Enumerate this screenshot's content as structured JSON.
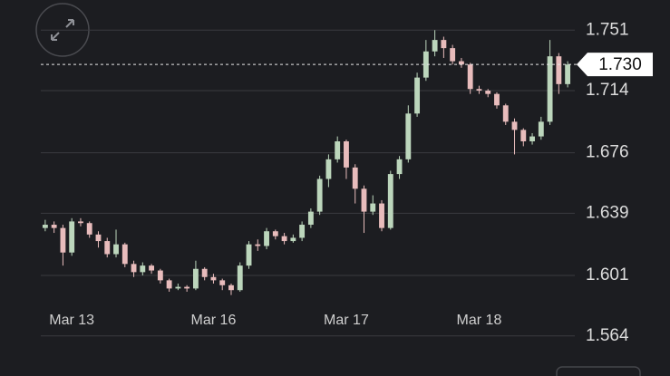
{
  "chart_data": {
    "type": "candlestick",
    "categories": [
      null,
      null,
      null,
      "Mar 13",
      null,
      null,
      null,
      null,
      null,
      null,
      null,
      null,
      null,
      null,
      null,
      null,
      null,
      null,
      null,
      "Mar 16",
      null,
      null,
      null,
      null,
      null,
      null,
      null,
      null,
      null,
      null,
      null,
      null,
      null,
      null,
      "Mar 17",
      null,
      null,
      null,
      null,
      null,
      null,
      null,
      null,
      null,
      null,
      null,
      null,
      null,
      null,
      "Mar 18",
      null,
      null,
      null,
      null,
      null,
      null,
      null,
      null,
      null,
      null
    ],
    "open": [
      1.63,
      1.632,
      1.63,
      1.615,
      1.634,
      1.633,
      1.626,
      1.622,
      1.614,
      1.62,
      1.608,
      1.603,
      1.607,
      1.604,
      1.598,
      1.593,
      1.594,
      1.593,
      1.605,
      1.6,
      1.598,
      1.595,
      1.592,
      1.607,
      1.62,
      1.619,
      1.628,
      1.625,
      1.622,
      1.624,
      1.632,
      1.64,
      1.66,
      1.672,
      1.683,
      1.667,
      1.654,
      1.64,
      1.645,
      1.63,
      1.663,
      1.672,
      1.7,
      1.722,
      1.738,
      1.745,
      1.74,
      1.732,
      1.73,
      1.715,
      1.714,
      1.712,
      1.705,
      1.695,
      1.69,
      1.683,
      1.686,
      1.695,
      1.735,
      1.718
    ],
    "high": [
      1.635,
      1.634,
      1.632,
      1.636,
      1.636,
      1.634,
      1.628,
      1.624,
      1.629,
      1.621,
      1.61,
      1.609,
      1.608,
      1.605,
      1.599,
      1.596,
      1.595,
      1.61,
      1.606,
      1.602,
      1.599,
      1.596,
      1.609,
      1.622,
      1.623,
      1.63,
      1.629,
      1.627,
      1.626,
      1.634,
      1.642,
      1.662,
      1.675,
      1.686,
      1.684,
      1.669,
      1.656,
      1.65,
      1.647,
      1.665,
      1.674,
      1.705,
      1.725,
      1.745,
      1.751,
      1.747,
      1.742,
      1.734,
      1.731,
      1.717,
      1.715,
      1.713,
      1.706,
      1.697,
      1.691,
      1.688,
      1.698,
      1.745,
      1.737,
      1.732
    ],
    "low": [
      1.628,
      1.627,
      1.607,
      1.613,
      1.631,
      1.624,
      1.618,
      1.612,
      1.612,
      1.606,
      1.6,
      1.601,
      1.602,
      1.596,
      1.591,
      1.592,
      1.591,
      1.592,
      1.598,
      1.596,
      1.592,
      1.589,
      1.591,
      1.605,
      1.616,
      1.617,
      1.623,
      1.62,
      1.621,
      1.622,
      1.63,
      1.638,
      1.655,
      1.67,
      1.66,
      1.645,
      1.627,
      1.638,
      1.628,
      1.629,
      1.66,
      1.67,
      1.698,
      1.72,
      1.735,
      1.734,
      1.73,
      1.728,
      1.712,
      1.712,
      1.71,
      1.703,
      1.693,
      1.675,
      1.68,
      1.681,
      1.684,
      1.693,
      1.712,
      1.716
    ],
    "close": [
      1.632,
      1.63,
      1.615,
      1.634,
      1.633,
      1.626,
      1.622,
      1.614,
      1.62,
      1.608,
      1.603,
      1.607,
      1.604,
      1.598,
      1.593,
      1.594,
      1.593,
      1.605,
      1.6,
      1.598,
      1.595,
      1.592,
      1.607,
      1.62,
      1.619,
      1.628,
      1.625,
      1.622,
      1.624,
      1.632,
      1.64,
      1.66,
      1.672,
      1.683,
      1.667,
      1.654,
      1.64,
      1.645,
      1.63,
      1.663,
      1.672,
      1.7,
      1.722,
      1.738,
      1.745,
      1.74,
      1.732,
      1.73,
      1.715,
      1.714,
      1.712,
      1.705,
      1.695,
      1.69,
      1.683,
      1.686,
      1.695,
      1.735,
      1.718,
      1.73
    ],
    "up_color": "#bcd6bc",
    "down_color": "#e8bcbc",
    "ylim": [
      1.55,
      1.77
    ],
    "yticks": [
      1.564,
      1.601,
      1.639,
      1.676,
      1.714,
      1.751
    ],
    "grid": true,
    "last_price": {
      "value": 1.73,
      "label": "1.730"
    }
  }
}
